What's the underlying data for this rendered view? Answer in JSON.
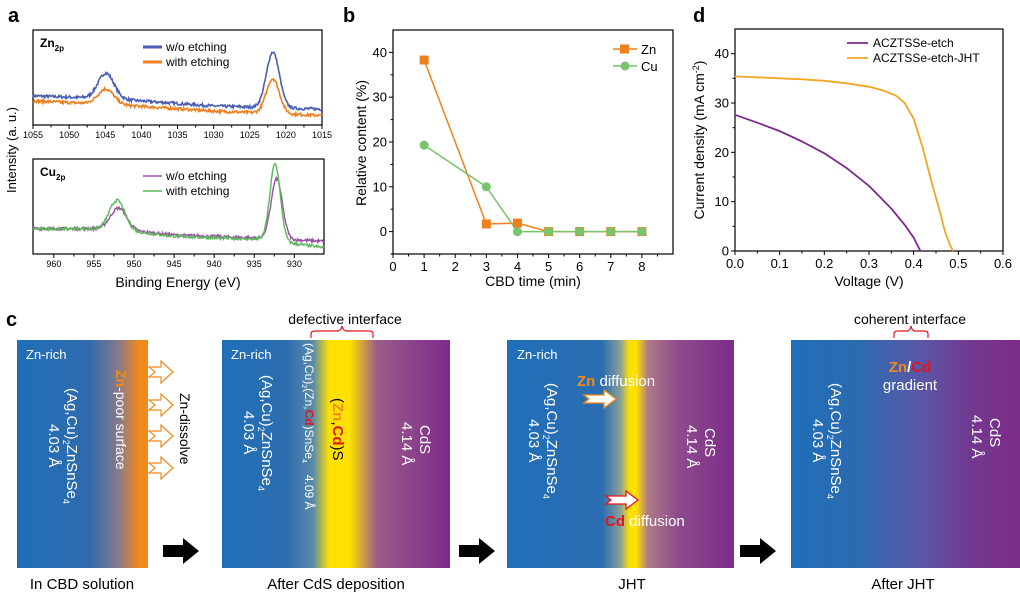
{
  "panel_labels": {
    "a": "a",
    "b": "b",
    "c": "c",
    "d": "d"
  },
  "colors": {
    "zn_blue": "#4a5fb3",
    "zn_orange": "#f07f1e",
    "cu_purple": "#9b4fa6",
    "cu_green": "#5cb85a",
    "b_zn": "#f07f1e",
    "b_cu": "#77c46c",
    "d_etch": "#7b2a8c",
    "d_jht": "#f5a623",
    "bar_blue": "#1f6fb8",
    "bar_orange": "#f08a1a",
    "bar_yellow": "#ffe000",
    "bar_purple": "#7c2c8a",
    "highlight_zn": "#f07f1e",
    "highlight_cd": "#e5141c",
    "brace_red": "#e5141c"
  },
  "chart_data": [
    {
      "id": "a-top",
      "type": "line",
      "title": "",
      "inset_label": "Zn",
      "inset_label_sub": "2p",
      "xlabel": "",
      "ylabel": "Intensity (a. u.)",
      "xlim": [
        1055,
        1015
      ],
      "x_ticks": [
        "1055",
        "1050",
        "1045",
        "1040",
        "1035",
        "1030",
        "1025",
        "1020",
        "1015"
      ],
      "x_tick_values": [
        1055,
        1050,
        1045,
        1040,
        1035,
        1030,
        1025,
        1020,
        1015
      ],
      "legend": [
        "w/o etching",
        "with etching"
      ],
      "legend_position": "top-center",
      "series": [
        {
          "name": "w/o etching",
          "baseline": [
            [
              1055,
              0.46
            ],
            [
              1045,
              0.42
            ],
            [
              1030,
              0.3
            ],
            [
              1015,
              0.25
            ]
          ],
          "peaks": [
            {
              "center": 1044.9,
              "height": 0.4,
              "width": 1.1
            },
            {
              "center": 1021.8,
              "height": 0.88,
              "width": 0.9
            }
          ]
        },
        {
          "name": "with etching",
          "baseline": [
            [
              1055,
              0.38
            ],
            [
              1045,
              0.33
            ],
            [
              1030,
              0.22
            ],
            [
              1015,
              0.15
            ]
          ],
          "peaks": [
            {
              "center": 1044.9,
              "height": 0.24,
              "width": 1.1
            },
            {
              "center": 1021.8,
              "height": 0.55,
              "width": 0.9
            }
          ]
        }
      ],
      "ylim": [
        0,
        1.5
      ]
    },
    {
      "id": "a-bottom",
      "type": "line",
      "inset_label": "Cu",
      "inset_label_sub": "2p",
      "xlabel": "Binding Energy (eV)",
      "ylabel": "Intensity (a. u.)",
      "xlim": [
        962.6,
        926.3
      ],
      "x_ticks": [
        "960",
        "955",
        "950",
        "945",
        "940",
        "935",
        "930"
      ],
      "x_tick_values": [
        960,
        955,
        950,
        945,
        940,
        935,
        930
      ],
      "legend": [
        "w/o etching",
        "with etching"
      ],
      "legend_position": "top-center",
      "series": [
        {
          "name": "w/o etching",
          "baseline": [
            [
              962.6,
              0.4
            ],
            [
              953,
              0.4
            ],
            [
              945,
              0.3
            ],
            [
              934,
              0.25
            ],
            [
              926.3,
              0.2
            ]
          ],
          "peaks": [
            {
              "center": 951.9,
              "height": 0.34,
              "width": 1.0
            },
            {
              "center": 932.2,
              "height": 0.95,
              "width": 0.7
            }
          ]
        },
        {
          "name": "with etching",
          "baseline": [
            [
              962.6,
              0.4
            ],
            [
              953,
              0.4
            ],
            [
              945,
              0.28
            ],
            [
              934,
              0.23
            ],
            [
              926.3,
              0.1
            ]
          ],
          "peaks": [
            {
              "center": 952.1,
              "height": 0.46,
              "width": 0.95
            },
            {
              "center": 932.4,
              "height": 1.22,
              "width": 0.65
            }
          ]
        }
      ],
      "ylim": [
        0,
        1.5
      ]
    },
    {
      "id": "b",
      "type": "line",
      "xlabel": "CBD time (min)",
      "ylabel": "Relative content (%)",
      "xlim": [
        0,
        9
      ],
      "ylim": [
        -5,
        45
      ],
      "x_ticks": [
        "0",
        "1",
        "2",
        "3",
        "4",
        "5",
        "6",
        "7",
        "8"
      ],
      "x_tick_values": [
        0,
        1,
        2,
        3,
        4,
        5,
        6,
        7,
        8
      ],
      "y_ticks": [
        "0",
        "10",
        "20",
        "30",
        "40"
      ],
      "y_tick_values": [
        0,
        10,
        20,
        30,
        40
      ],
      "legend_position": "top-right",
      "series": [
        {
          "name": "Zn",
          "marker": "square",
          "x": [
            1,
            3,
            4,
            5,
            6,
            7,
            8
          ],
          "y": [
            38.3,
            1.7,
            1.9,
            0.0,
            0.0,
            0.0,
            0.0
          ]
        },
        {
          "name": "Cu",
          "marker": "circle",
          "x": [
            1,
            3,
            4,
            5,
            6,
            7,
            8
          ],
          "y": [
            19.3,
            10.0,
            0.0,
            0.0,
            0.0,
            0.0,
            0.0
          ]
        }
      ]
    },
    {
      "id": "d",
      "type": "line",
      "xlabel": "Voltage (V)",
      "ylabel": "Current density (mA cm",
      "ylabel_sup": "-2",
      "ylabel_end": ")",
      "xlim": [
        0,
        0.6
      ],
      "ylim": [
        0,
        45
      ],
      "x_ticks": [
        "0.0",
        "0.1",
        "0.2",
        "0.3",
        "0.4",
        "0.5",
        "0.6"
      ],
      "x_tick_values": [
        0,
        0.1,
        0.2,
        0.3,
        0.4,
        0.5,
        0.6
      ],
      "y_ticks": [
        "0",
        "10",
        "20",
        "30",
        "40"
      ],
      "y_tick_values": [
        0,
        10,
        20,
        30,
        40
      ],
      "legend_position": "top-right",
      "series": [
        {
          "name": "ACZTSSe-etch",
          "x": [
            0,
            0.05,
            0.1,
            0.15,
            0.2,
            0.25,
            0.3,
            0.35,
            0.38,
            0.4,
            0.415
          ],
          "y": [
            27.6,
            26.0,
            24.3,
            22.2,
            19.8,
            16.8,
            13.2,
            8.6,
            5.3,
            2.7,
            0.0
          ]
        },
        {
          "name": "ACZTSSe-etch-JHT",
          "x": [
            0,
            0.05,
            0.1,
            0.15,
            0.2,
            0.25,
            0.3,
            0.33,
            0.36,
            0.38,
            0.4,
            0.42,
            0.44,
            0.46,
            0.47,
            0.48,
            0.488
          ],
          "y": [
            35.4,
            35.2,
            35.0,
            34.8,
            34.5,
            34.0,
            33.3,
            32.6,
            31.5,
            30.0,
            26.8,
            21.0,
            14.0,
            7.5,
            4.0,
            1.5,
            0.0
          ]
        }
      ]
    }
  ],
  "schematic": {
    "stages": [
      {
        "caption": "In CBD solution",
        "zn_rich": "Zn-rich",
        "absorber_main": "(Ag,Cu)",
        "absorber_sub": "2",
        "absorber_tail": "ZnSnSe",
        "absorber_sub2": "4",
        "absorber_lattice": "4.03 Å",
        "surface_zn": "Zn",
        "surface_tail": "-poor surface",
        "dissolve_label": "Zn-dissolve"
      },
      {
        "caption": "After CdS deposition",
        "top_label": "defective interface",
        "zn_rich": "Zn-rich",
        "absorber_main": "(Ag,Cu)",
        "absorber_sub": "2",
        "absorber_tail": "ZnSnSe",
        "absorber_sub2": "4",
        "absorber_lattice": "4.03 Å",
        "interlayer_a": "(Ag,Cu)",
        "interlayer_sub": "2",
        "interlayer_b": "(Zn,",
        "interlayer_cd": "Cd",
        "interlayer_c": ")SnSe",
        "interlayer_sub2": "4",
        "interlayer_lattice": "4.09 Å",
        "zncds_open": "(",
        "zncds_zn": "Zn",
        "zncds_comma": ",",
        "zncds_cd": "Cd",
        "zncds_close": ")S",
        "cds": "CdS",
        "cds_lattice": "4.14 Å"
      },
      {
        "caption": "JHT",
        "zn_rich": "Zn-rich",
        "absorber_main": "(Ag,Cu)",
        "absorber_sub": "2",
        "absorber_tail": "ZnSnSe",
        "absorber_sub2": "4",
        "absorber_lattice": "4.03 Å",
        "zn_diff_el": "Zn",
        "zn_diff_text": " diffusion",
        "cd_diff_el": "Cd",
        "cd_diff_text": " diffusion",
        "cds": "CdS",
        "cds_lattice": "4.14 Å"
      },
      {
        "caption": "After JHT",
        "top_label": "coherent interface",
        "absorber_main": "(Ag,Cu)",
        "absorber_sub": "2",
        "absorber_tail": "ZnSnSe",
        "absorber_sub2": "4",
        "absorber_lattice": "4.03 Å",
        "grad_zn": "Zn",
        "grad_slash": "/",
        "grad_cd": "Cd",
        "grad_text": "gradient",
        "cds": "CdS",
        "cds_lattice": "4.14 Å"
      }
    ]
  }
}
